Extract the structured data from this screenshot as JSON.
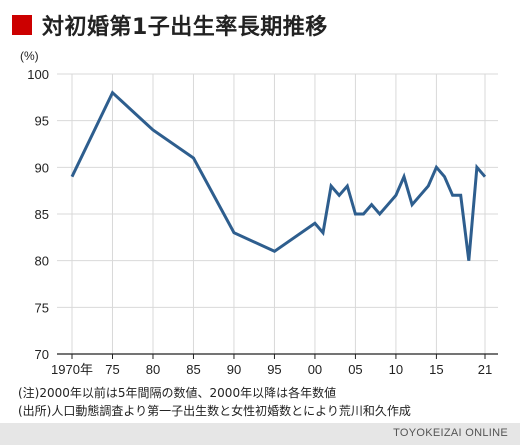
{
  "chart_data": {
    "type": "line",
    "title": "対初婚第1子出生率長期推移",
    "unit_label": "(%)",
    "ylim": [
      70,
      100
    ],
    "yticks": [
      70,
      75,
      80,
      85,
      90,
      95,
      100
    ],
    "xlim": [
      1970,
      2021
    ],
    "xticks": [
      {
        "year": 1970,
        "label": "1970年"
      },
      {
        "year": 1975,
        "label": "75"
      },
      {
        "year": 1980,
        "label": "80"
      },
      {
        "year": 1985,
        "label": "85"
      },
      {
        "year": 1990,
        "label": "90"
      },
      {
        "year": 1995,
        "label": "95"
      },
      {
        "year": 2000,
        "label": "00"
      },
      {
        "year": 2005,
        "label": "05"
      },
      {
        "year": 2010,
        "label": "10"
      },
      {
        "year": 2015,
        "label": "15"
      },
      {
        "year": 2021,
        "label": "21"
      }
    ],
    "grid": true,
    "line_color": "#2e5e8e",
    "series": [
      {
        "x": [
          1970,
          1975,
          1980,
          1985,
          1990,
          1995,
          2000,
          2001,
          2002,
          2003,
          2004,
          2005,
          2006,
          2007,
          2008,
          2009,
          2010,
          2011,
          2012,
          2013,
          2014,
          2015,
          2016,
          2017,
          2018,
          2019,
          2020,
          2021
        ],
        "values": [
          89,
          98,
          94,
          91,
          83,
          81,
          84,
          83,
          88,
          87,
          88,
          85,
          85,
          86,
          85,
          86,
          87,
          89,
          86,
          87,
          88,
          90,
          89,
          87,
          87,
          80,
          90,
          89
        ]
      }
    ]
  },
  "notes": [
    "(注)2000年以前は5年間隔の数値、2000年以降は各年数値",
    "(出所)人口動態調査より第一子出生数と女性初婚数とにより荒川和久作成"
  ],
  "source_brand": "TOYOKEIZAI ONLINE",
  "colors": {
    "accent": "#cc0000",
    "line": "#2e5e8e",
    "grid": "#d9d9d9",
    "footer": "#e6e6e6"
  }
}
